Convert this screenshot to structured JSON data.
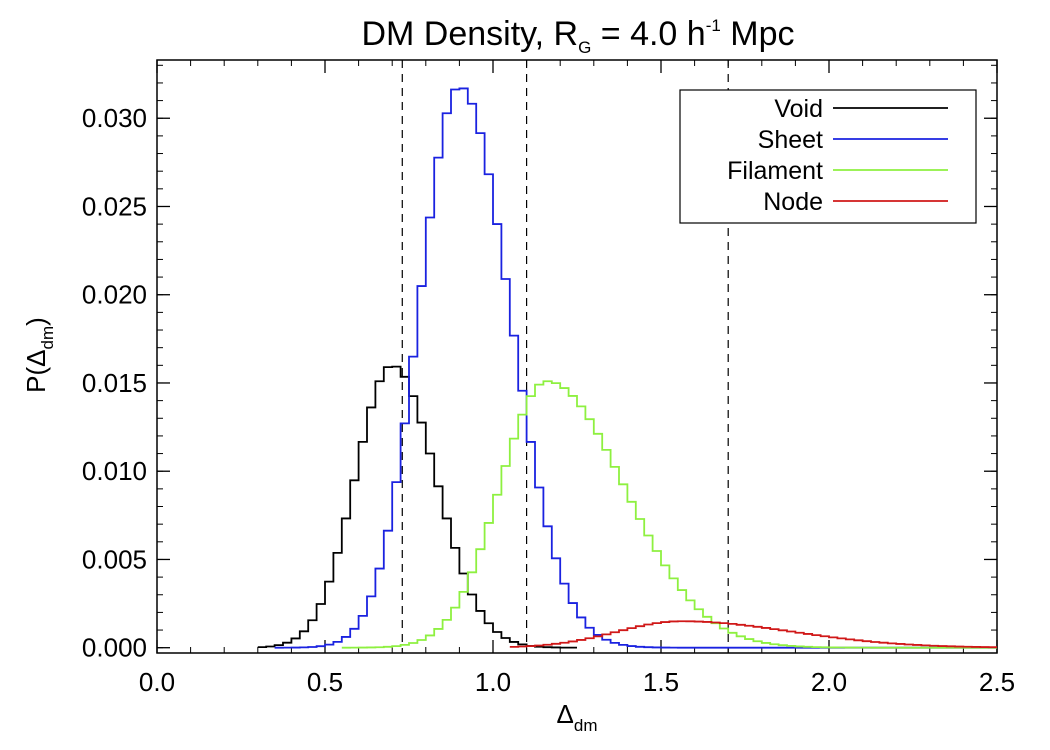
{
  "chart_data": {
    "type": "line",
    "style": "step",
    "title": {
      "main": "DM Density, R",
      "main_sub": "G",
      "equals": " = 4.0 h",
      "exp": "-1",
      "unit": " Mpc"
    },
    "xlabel": {
      "symbol": "Δ",
      "sub": "dm"
    },
    "ylabel": {
      "prefix": "P(",
      "symbol": "Δ",
      "sub": "dm",
      "suffix": ")"
    },
    "xlim": [
      0.0,
      2.5
    ],
    "ylim": [
      -0.0003,
      0.0333
    ],
    "x_ticks": [
      "0.0",
      "0.5",
      "1.0",
      "1.5",
      "2.0",
      "2.5"
    ],
    "y_ticks": [
      "0.000",
      "0.005",
      "0.010",
      "0.015",
      "0.020",
      "0.025",
      "0.030"
    ],
    "x_tick_values": [
      0.0,
      0.5,
      1.0,
      1.5,
      2.0,
      2.5
    ],
    "y_tick_values": [
      0.0,
      0.005,
      0.01,
      0.015,
      0.02,
      0.025,
      0.03
    ],
    "x_minor_step": 0.1,
    "y_minor_step": 0.001,
    "vlines": [
      0.73,
      1.1,
      1.7
    ],
    "legend_position": "top-right",
    "series": [
      {
        "name": "Void",
        "color": "#000000",
        "peak": 0.7,
        "sigma_left": 0.11,
        "sigma_right": 0.13,
        "amplitude": 0.016,
        "x_min": 0.3,
        "x_max": 1.25
      },
      {
        "name": "Sheet",
        "color": "#1a22e0",
        "peak": 0.9,
        "sigma_left": 0.12,
        "sigma_right": 0.15,
        "amplitude": 0.0318,
        "x_min": 0.35,
        "x_max": 2.5
      },
      {
        "name": "Filament",
        "color": "#8ef040",
        "peak": 1.16,
        "sigma_left": 0.14,
        "sigma_right": 0.23,
        "amplitude": 0.0151,
        "x_min": 0.55,
        "x_max": 2.5
      },
      {
        "name": "Node",
        "color": "#d01818",
        "peak": 1.56,
        "sigma_left": 0.19,
        "sigma_right": 0.33,
        "amplitude": 0.0015,
        "x_min": 1.05,
        "x_max": 2.5
      }
    ],
    "bin_width": 0.025
  }
}
